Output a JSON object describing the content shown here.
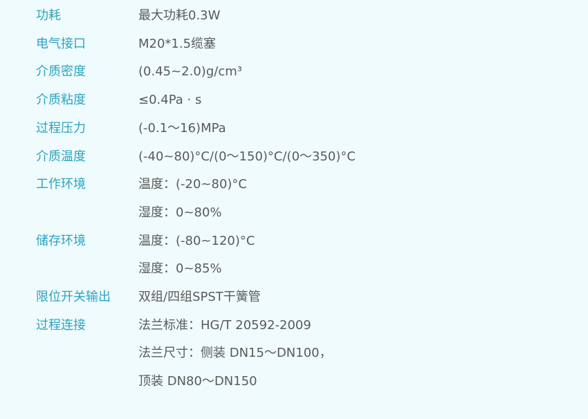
{
  "specs": [
    {
      "label": "功耗",
      "values": [
        "最大功耗0.3W"
      ]
    },
    {
      "label": "电气接口",
      "values": [
        "M20*1.5缆塞"
      ]
    },
    {
      "label": "介质密度",
      "values": [
        "(0.45~2.0)g/cm³"
      ]
    },
    {
      "label": "介质粘度",
      "values": [
        "≤0.4Pa · s"
      ]
    },
    {
      "label": "过程压力",
      "values": [
        "(-0.1～16)MPa"
      ]
    },
    {
      "label": "介质温度",
      "values": [
        "(-40~80)°C/(0～150)°C/(0～350)°C"
      ]
    },
    {
      "label": "工作环境",
      "values": [
        "温度：(-20~80)°C",
        "湿度：0~80%"
      ]
    },
    {
      "label": "储存环境",
      "values": [
        "温度：(-80~120)°C",
        "湿度：0~85%"
      ]
    },
    {
      "label": "限位开关输出",
      "values": [
        "双组/四组SPST干簧管"
      ]
    },
    {
      "label": "过程连接",
      "values": [
        "法兰标准：HG/T 20592-2009",
        "法兰尺寸：侧装 DN15～DN100，",
        "顶装 DN80～DN150"
      ]
    }
  ]
}
